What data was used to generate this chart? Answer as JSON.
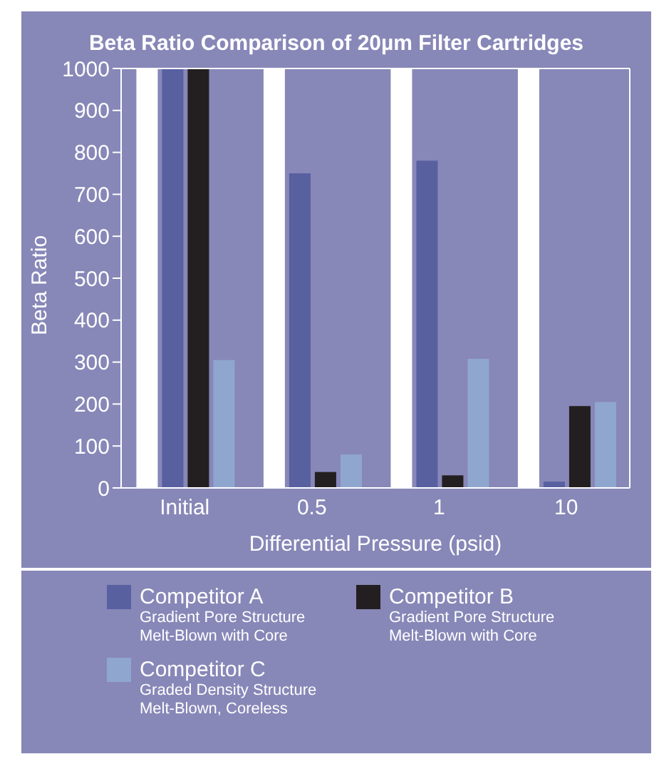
{
  "chart_data": {
    "type": "bar",
    "title": "Beta Ratio Comparison of 20µm Filter Cartridges",
    "xlabel": "Differential Pressure (psid)",
    "ylabel": "Beta Ratio",
    "categories": [
      "Initial",
      "0.5",
      "1",
      "10"
    ],
    "series": [
      {
        "color": "#ffffff",
        "values": [
          1000,
          1000,
          1000,
          1000
        ]
      },
      {
        "name": "Competitor A",
        "color": "#5860a0",
        "values": [
          1000,
          750,
          780,
          15
        ]
      },
      {
        "name": "Competitor B",
        "color": "#231f20",
        "values": [
          1000,
          38,
          30,
          195
        ]
      },
      {
        "name": "Competitor C",
        "color": "#8fa6cf",
        "values": [
          305,
          80,
          308,
          205
        ]
      }
    ],
    "annotations": [
      "Gradient Pore Structure Melt-Blown with Core",
      "Gradient Pore Structure Melt-Blown with Core",
      "Graded Density Structure Melt-Blown, Coreless"
    ],
    "ylim": [
      0,
      1000
    ],
    "yticks": [
      0,
      100,
      200,
      300,
      400,
      500,
      600,
      700,
      800,
      900,
      1000
    ],
    "grid": false,
    "legend": "bottom"
  }
}
